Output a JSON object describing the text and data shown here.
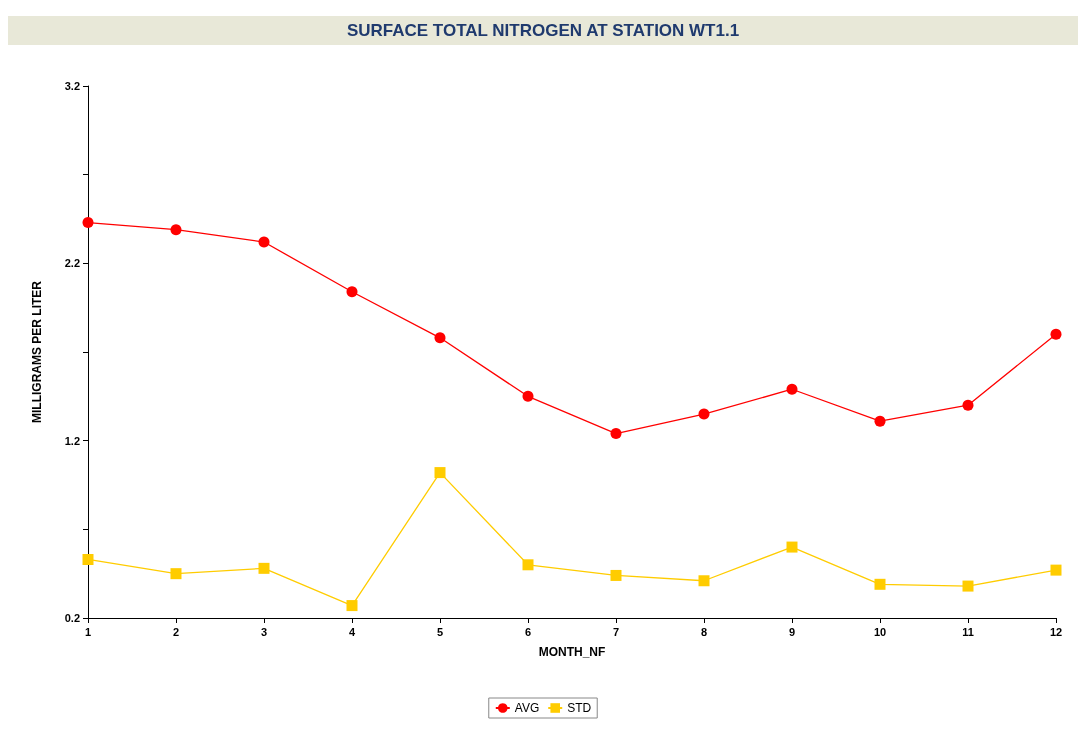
{
  "chart_data": {
    "type": "line",
    "title": "SURFACE TOTAL NITROGEN AT STATION WT1.1",
    "xlabel": "MONTH_NF",
    "ylabel": "MILLIGRAMS PER LITER",
    "x": [
      1,
      2,
      3,
      4,
      5,
      6,
      7,
      8,
      9,
      10,
      11,
      12
    ],
    "series": [
      {
        "name": "AVG",
        "color": "#ff0000",
        "marker": "circle",
        "values": [
          2.43,
          2.39,
          2.32,
          2.04,
          1.78,
          1.45,
          1.24,
          1.35,
          1.49,
          1.31,
          1.4,
          1.8
        ]
      },
      {
        "name": "STD",
        "color": "#ffcc00",
        "marker": "square",
        "values": [
          0.53,
          0.45,
          0.48,
          0.27,
          1.02,
          0.5,
          0.44,
          0.41,
          0.6,
          0.39,
          0.38,
          0.47
        ]
      }
    ],
    "xlim": [
      1,
      12
    ],
    "xticks": [
      1,
      2,
      3,
      4,
      5,
      6,
      7,
      8,
      9,
      10,
      11,
      12
    ],
    "ylim": [
      0.2,
      3.2
    ],
    "yticks": [
      0.2,
      {
        "value": 0.7,
        "label": null
      },
      1.2,
      {
        "value": 1.7,
        "label": null
      },
      2.2,
      {
        "value": 2.7,
        "label": null
      },
      3.2
    ],
    "grid": false,
    "legend": "bottom"
  }
}
